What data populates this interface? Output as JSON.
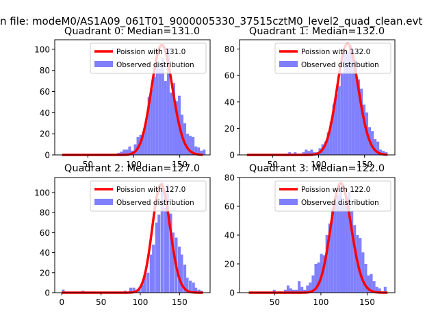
{
  "figure": {
    "suptitle": "n file: modeM0/AS1A09_061T01_9000005330_37515cztM0_level2_quad_clean.evt"
  },
  "colors": {
    "hist": "#8080ff",
    "poisson": "#ff0000",
    "axis": "#000000",
    "background": "#ffffff"
  },
  "chart_data": [
    {
      "type": "bar",
      "title": "Quadrant 0: Median=131.0",
      "xlabel": "",
      "ylabel": "",
      "xlim": [
        14,
        183
      ],
      "ylim": [
        0,
        109
      ],
      "xticks": [
        50,
        100,
        150
      ],
      "yticks": [
        0,
        20,
        40,
        60,
        80,
        100
      ],
      "legend": {
        "location": "upper right",
        "entries": [
          "Poission with 131.0",
          "Observed distribution"
        ]
      },
      "series": [
        {
          "name": "Poission with 131.0",
          "kind": "line",
          "lambda": 131.0,
          "scale": 104,
          "x_range": [
            22,
            175
          ]
        },
        {
          "name": "Observed distribution",
          "kind": "histogram",
          "bin_width": 3,
          "bins": [
            [
              61,
              1
            ],
            [
              82,
              2
            ],
            [
              85,
              3
            ],
            [
              88,
              5
            ],
            [
              91,
              5
            ],
            [
              94,
              8
            ],
            [
              97,
              4
            ],
            [
              100,
              10
            ],
            [
              103,
              17
            ],
            [
              106,
              19
            ],
            [
              109,
              22
            ],
            [
              112,
              32
            ],
            [
              115,
              55
            ],
            [
              118,
              62
            ],
            [
              121,
              74
            ],
            [
              124,
              86
            ],
            [
              127,
              82
            ],
            [
              130,
              92
            ],
            [
              133,
              70
            ],
            [
              136,
              101
            ],
            [
              139,
              59
            ],
            [
              142,
              68
            ],
            [
              145,
              51
            ],
            [
              148,
              56
            ],
            [
              151,
              38
            ],
            [
              154,
              30
            ],
            [
              157,
              20
            ],
            [
              160,
              18
            ],
            [
              163,
              17
            ],
            [
              166,
              8
            ],
            [
              169,
              7
            ],
            [
              172,
              4
            ],
            [
              175,
              5
            ]
          ]
        }
      ]
    },
    {
      "type": "bar",
      "title": "Quadrant 1: Median=132.0",
      "xlabel": "",
      "ylabel": "",
      "xlim": [
        14,
        183
      ],
      "ylim": [
        0,
        87
      ],
      "xticks": [
        50,
        100,
        150
      ],
      "yticks": [
        0,
        20,
        40,
        60,
        80
      ],
      "legend": {
        "location": "upper right",
        "entries": [
          "Poission with 132.0",
          "Observed distribution"
        ]
      },
      "series": [
        {
          "name": "Poission with 132.0",
          "kind": "line",
          "lambda": 132.0,
          "scale": 84,
          "x_range": [
            22,
            175
          ]
        },
        {
          "name": "Observed distribution",
          "kind": "histogram",
          "bin_width": 3,
          "bins": [
            [
              64,
              1
            ],
            [
              67,
              2
            ],
            [
              70,
              1
            ],
            [
              73,
              2
            ],
            [
              76,
              1
            ],
            [
              79,
              1
            ],
            [
              82,
              2
            ],
            [
              85,
              4
            ],
            [
              88,
              3
            ],
            [
              91,
              4
            ],
            [
              94,
              2
            ],
            [
              97,
              2
            ],
            [
              100,
              5
            ],
            [
              103,
              8
            ],
            [
              106,
              10
            ],
            [
              109,
              17
            ],
            [
              112,
              25
            ],
            [
              115,
              38
            ],
            [
              118,
              46
            ],
            [
              121,
              52
            ],
            [
              124,
              62
            ],
            [
              127,
              77
            ],
            [
              130,
              78
            ],
            [
              133,
              83
            ],
            [
              136,
              80
            ],
            [
              139,
              72
            ],
            [
              142,
              57
            ],
            [
              145,
              50
            ],
            [
              148,
              38
            ],
            [
              151,
              32
            ],
            [
              154,
              21
            ],
            [
              157,
              18
            ],
            [
              160,
              12
            ],
            [
              163,
              10
            ],
            [
              166,
              4
            ],
            [
              169,
              3
            ],
            [
              172,
              2
            ]
          ]
        }
      ]
    },
    {
      "type": "bar",
      "title": "Quadrant 2: Median=127.0",
      "xlabel": "",
      "ylabel": "",
      "xlim": [
        -9,
        189
      ],
      "ylim": [
        0,
        115
      ],
      "xticks": [
        0,
        50,
        100,
        150
      ],
      "yticks": [
        0,
        20,
        40,
        60,
        80,
        100
      ],
      "legend": {
        "location": "upper right",
        "entries": [
          "Poission with 127.0",
          "Observed distribution"
        ]
      },
      "series": [
        {
          "name": "Poission with 127.0",
          "kind": "line",
          "lambda": 127.0,
          "scale": 108,
          "x_range": [
            0,
            180
          ]
        },
        {
          "name": "Observed distribution",
          "kind": "histogram",
          "bin_width": 3.6,
          "bins": [
            [
              0,
              3
            ],
            [
              25,
              2
            ],
            [
              55,
              1
            ],
            [
              79,
              2
            ],
            [
              83,
              1
            ],
            [
              86,
              5
            ],
            [
              90,
              5
            ],
            [
              94,
              3
            ],
            [
              97,
              4
            ],
            [
              101,
              8
            ],
            [
              104,
              18
            ],
            [
              108,
              20
            ],
            [
              112,
              38
            ],
            [
              115,
              48
            ],
            [
              119,
              70
            ],
            [
              122,
              78
            ],
            [
              126,
              110
            ],
            [
              130,
              85
            ],
            [
              133,
              108
            ],
            [
              137,
              79
            ],
            [
              140,
              60
            ],
            [
              144,
              55
            ],
            [
              148,
              46
            ],
            [
              151,
              38
            ],
            [
              155,
              28
            ],
            [
              158,
              15
            ],
            [
              162,
              12
            ],
            [
              166,
              10
            ],
            [
              169,
              5
            ],
            [
              173,
              3
            ],
            [
              176,
              2
            ]
          ]
        }
      ]
    },
    {
      "type": "bar",
      "title": "Quadrant 3: Median=122.0",
      "xlabel": "",
      "ylabel": "",
      "xlim": [
        12,
        180
      ],
      "ylim": [
        0,
        80
      ],
      "xticks": [
        50,
        100,
        150
      ],
      "yticks": [
        0,
        20,
        40,
        60,
        80
      ],
      "legend": {
        "location": "upper right",
        "entries": [
          "Poission with 122.0",
          "Observed distribution"
        ]
      },
      "series": [
        {
          "name": "Poission with 122.0",
          "kind": "line",
          "lambda": 122.0,
          "scale": 76,
          "x_range": [
            22,
            172
          ]
        },
        {
          "name": "Observed distribution",
          "kind": "histogram",
          "bin_width": 3,
          "bins": [
            [
              48,
              2
            ],
            [
              54,
              1
            ],
            [
              60,
              2
            ],
            [
              63,
              5
            ],
            [
              66,
              3
            ],
            [
              69,
              2
            ],
            [
              72,
              2
            ],
            [
              75,
              8
            ],
            [
              78,
              4
            ],
            [
              81,
              2
            ],
            [
              84,
              5
            ],
            [
              87,
              7
            ],
            [
              90,
              12
            ],
            [
              93,
              20
            ],
            [
              96,
              21
            ],
            [
              99,
              27
            ],
            [
              102,
              26
            ],
            [
              105,
              40
            ],
            [
              108,
              48
            ],
            [
              111,
              58
            ],
            [
              114,
              63
            ],
            [
              117,
              68
            ],
            [
              120,
              72
            ],
            [
              123,
              62
            ],
            [
              126,
              66
            ],
            [
              129,
              70
            ],
            [
              132,
              57
            ],
            [
              135,
              47
            ],
            [
              138,
              40
            ],
            [
              141,
              38
            ],
            [
              144,
              28
            ],
            [
              147,
              20
            ],
            [
              150,
              12
            ],
            [
              153,
              13
            ],
            [
              156,
              8
            ],
            [
              159,
              4
            ],
            [
              162,
              3
            ],
            [
              165,
              1
            ],
            [
              168,
              4
            ]
          ]
        }
      ]
    }
  ]
}
